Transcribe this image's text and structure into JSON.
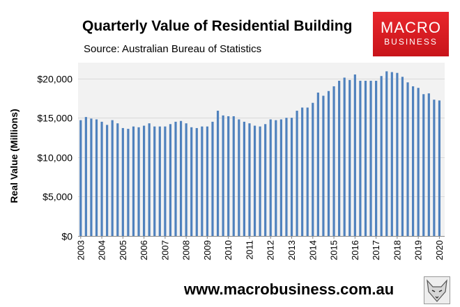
{
  "header": {
    "title": "Quarterly Value of Residential Building",
    "source": "Source: Australian Bureau of Statistics"
  },
  "logo": {
    "line1": "MACRO",
    "line2": "BUSINESS"
  },
  "footer": {
    "url": "www.macrobusiness.com.au"
  },
  "colors": {
    "bar": "#4f81bd",
    "plot_bg": "#f2f2f2",
    "grid": "#d9d9d9",
    "logo": "#e02020"
  },
  "chart_data": {
    "type": "bar",
    "title": "Quarterly Value of Residential Building",
    "xlabel": "",
    "ylabel": "Real Value (Millions)",
    "ylim": [
      0,
      22000
    ],
    "yticks": [
      0,
      5000,
      10000,
      15000,
      20000
    ],
    "ytick_labels": [
      "$0",
      "$5,000",
      "$10,000",
      "$15,000",
      "$20,000"
    ],
    "xtick_labels": [
      "2003",
      "2004",
      "2005",
      "2006",
      "2007",
      "2008",
      "2009",
      "2010",
      "2011",
      "2012",
      "2013",
      "2014",
      "2015",
      "2016",
      "2017",
      "2018",
      "2019",
      "2020"
    ],
    "start_year": 2003,
    "grid": true,
    "series": [
      {
        "name": "Real Value (Millions)",
        "values": [
          14700,
          15100,
          14900,
          14800,
          14500,
          14100,
          14700,
          14300,
          13700,
          13600,
          13900,
          13800,
          14000,
          14300,
          13900,
          13900,
          13900,
          14200,
          14500,
          14600,
          14300,
          13800,
          13700,
          13900,
          13900,
          14500,
          15900,
          15300,
          15200,
          15200,
          14800,
          14500,
          14300,
          14000,
          13900,
          14200,
          14800,
          14700,
          14800,
          15000,
          15000,
          15900,
          16300,
          16300,
          16900,
          18200,
          17800,
          18400,
          19000,
          19700,
          20100,
          19800,
          20500,
          19700,
          19700,
          19700,
          19700,
          20300,
          20900,
          20800,
          20700,
          20200,
          19500,
          19000,
          18800,
          18000,
          18100,
          17300,
          17200
        ]
      }
    ]
  }
}
